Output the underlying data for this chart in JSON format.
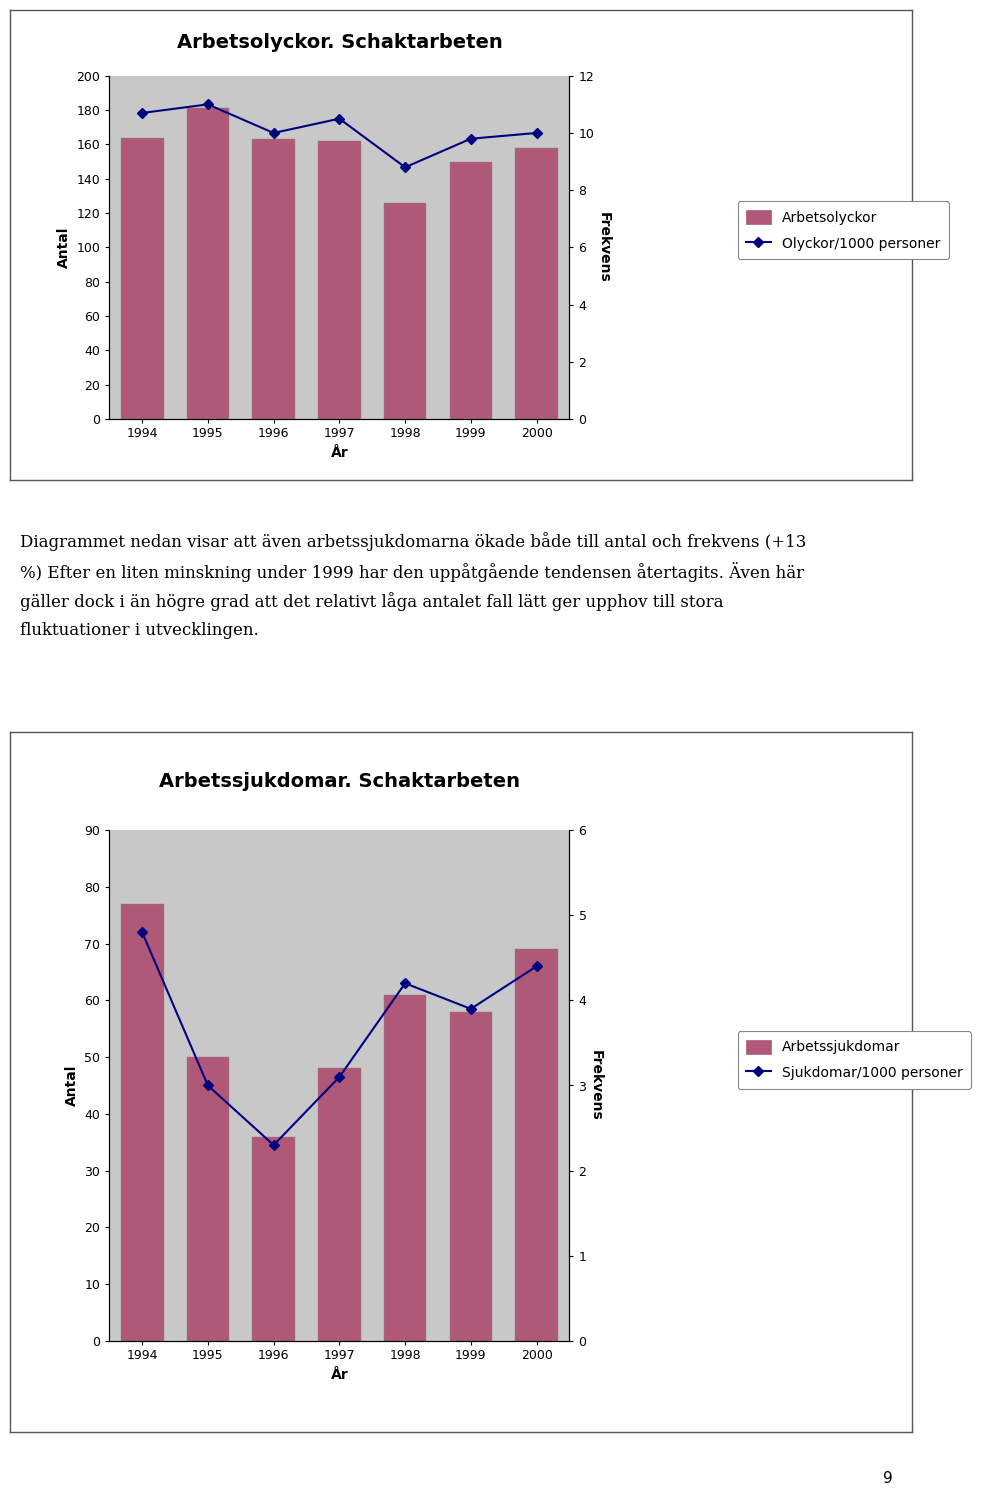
{
  "chart1": {
    "title": "Arbetsolyckor. Schaktarbeten",
    "years": [
      1994,
      1995,
      1996,
      1997,
      1998,
      1999,
      2000
    ],
    "bar_values": [
      164,
      181,
      163,
      162,
      126,
      150,
      158
    ],
    "line_values": [
      10.7,
      11.0,
      10.0,
      10.5,
      8.8,
      9.8,
      10.0
    ],
    "bar_color": "#b05878",
    "line_color": "#000080",
    "ylabel_left": "Antal",
    "ylabel_right": "Frekvens",
    "xlabel": "År",
    "ylim_left": [
      0,
      200
    ],
    "ylim_right": [
      0,
      12
    ],
    "yticks_left": [
      0,
      20,
      40,
      60,
      80,
      100,
      120,
      140,
      160,
      180,
      200
    ],
    "yticks_right": [
      0,
      2,
      4,
      6,
      8,
      10,
      12
    ],
    "legend_bar": "Arbetsolyckor",
    "legend_line": "Olyckor/1000 personer",
    "plot_bg": "#C8C8C8"
  },
  "chart2": {
    "title": "Arbetssjukdomar. Schaktarbeten",
    "years": [
      1994,
      1995,
      1996,
      1997,
      1998,
      1999,
      2000
    ],
    "bar_values": [
      77,
      50,
      36,
      48,
      61,
      58,
      69
    ],
    "line_values": [
      4.8,
      3.0,
      2.3,
      3.1,
      4.2,
      3.9,
      4.4
    ],
    "bar_color": "#b05878",
    "line_color": "#000080",
    "ylabel_left": "Antal",
    "ylabel_right": "Frekvens",
    "xlabel": "År",
    "ylim_left": [
      0,
      90
    ],
    "ylim_right": [
      0,
      6
    ],
    "yticks_left": [
      0,
      10,
      20,
      30,
      40,
      50,
      60,
      70,
      80,
      90
    ],
    "yticks_right": [
      0,
      1,
      2,
      3,
      4,
      5,
      6
    ],
    "legend_bar": "Arbetssjukdomar",
    "legend_line": "Sjukdomar/1000 personer",
    "plot_bg": "#C8C8C8"
  },
  "text_line1": "Diagrammet nedan visar att även arbetssjukdomarna ökade både till antal och frekvens (+13",
  "text_line2": "%) Efter en liten minskning under 1999 har den uppåtgående tendensen återtagits. Även här",
  "text_line3": "gäller dock i än högre grad att det relativt låga antalet fall lätt ger upphov till stora",
  "text_line4": "fluktuationer i utvecklingen.",
  "page_number": "9",
  "bg_color": "#ffffff",
  "frame_color": "#000000",
  "title_fontsize": 14,
  "label_fontsize": 10,
  "tick_fontsize": 9,
  "legend_fontsize": 10,
  "text_fontsize": 12
}
